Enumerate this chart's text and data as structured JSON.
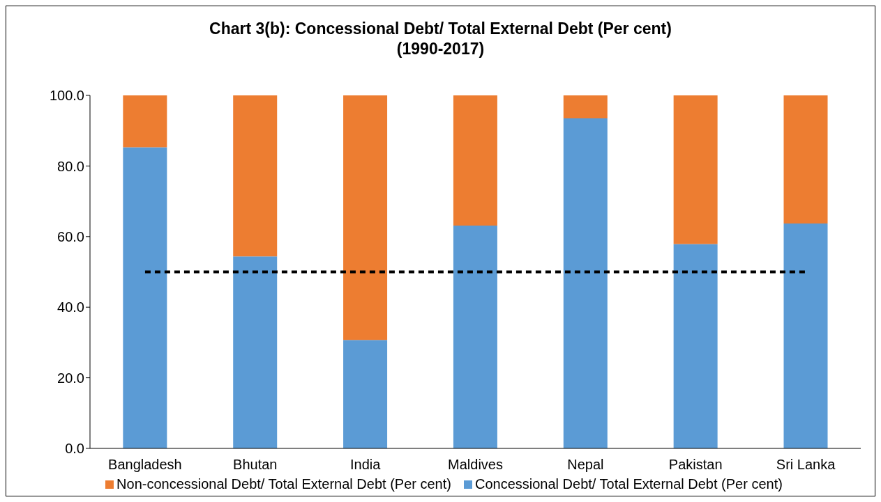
{
  "chart_data": {
    "type": "bar",
    "title": "Chart 3(b): Concessional Debt/ Total External Debt (Per cent)\n(1990-2017)",
    "categories": [
      "Bangladesh",
      "Bhutan",
      "India",
      "Maldives",
      "Nepal",
      "Pakistan",
      "Sri Lanka"
    ],
    "stacked": true,
    "series": [
      {
        "name": "Concessional Debt/ Total External Debt (Per cent)",
        "color": "#5b9bd5",
        "values": [
          85.3,
          54.4,
          30.7,
          63.1,
          93.5,
          57.9,
          63.7
        ]
      },
      {
        "name": "Non-concessional Debt/ Total External Debt (Per cent)",
        "color": "#ed7d31",
        "values": [
          14.7,
          45.6,
          69.3,
          36.9,
          6.5,
          42.1,
          36.3
        ]
      }
    ],
    "ylim": [
      0,
      100
    ],
    "yticks": [
      {
        "value": 0,
        "label": "0.0"
      },
      {
        "value": 20,
        "label": "20.0"
      },
      {
        "value": 40,
        "label": "40.0"
      },
      {
        "value": 60,
        "label": "60.0"
      },
      {
        "value": 80,
        "label": "80.0"
      },
      {
        "value": 100,
        "label": "100.0"
      }
    ],
    "ref_lines": [
      {
        "axis": "y",
        "value": 50,
        "color": "#000000",
        "line_style": "dashed"
      }
    ],
    "grid": false,
    "legend": "bottom"
  }
}
